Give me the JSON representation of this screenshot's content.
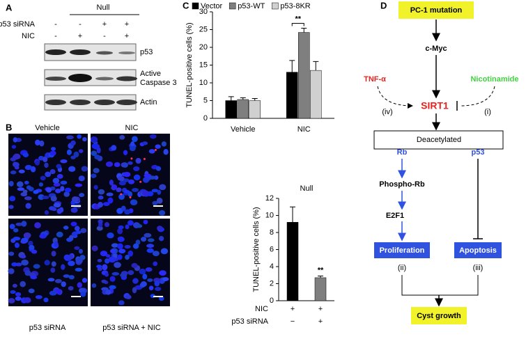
{
  "panel_labels": [
    "A",
    "B",
    "C",
    "D"
  ],
  "panel_a": {
    "group": "Null",
    "rows": [
      {
        "label": "p53 siRNA",
        "cells": [
          "-",
          "-",
          "+",
          "+"
        ]
      },
      {
        "label": "NIC",
        "cells": [
          "-",
          "+",
          "-",
          "+"
        ]
      }
    ],
    "blots": [
      [
        "p53"
      ],
      [
        "Active",
        "Caspase 3"
      ],
      [
        "Actin"
      ]
    ]
  },
  "panel_b": {
    "columns": [
      "Vehicle",
      "NIC"
    ],
    "bottom_labels": [
      "p53 siRNA",
      "p53 siRNA + NIC"
    ]
  },
  "chart_data": [
    {
      "type": "bar",
      "ylabel": "TUNEL-positive cells (%)",
      "categories": [
        "Vehicle",
        "NIC"
      ],
      "series": [
        {
          "name": "Vector",
          "color": "#000000",
          "values": [
            5,
            13
          ],
          "errors": [
            1.1,
            3.3
          ]
        },
        {
          "name": "p53-WT",
          "color": "#7f7f7f",
          "values": [
            5.3,
            24.2
          ],
          "errors": [
            0.5,
            1.2
          ]
        },
        {
          "name": "p53-8KR",
          "color": "#d0d0d0",
          "values": [
            5,
            13.5
          ],
          "errors": [
            0.6,
            2.5
          ]
        }
      ],
      "ylim": [
        0,
        30
      ],
      "yticks": [
        0,
        5,
        10,
        15,
        20,
        25,
        30
      ],
      "annotation": "**"
    },
    {
      "type": "bar",
      "title": "Null",
      "ylabel": "TUNEL-positive cells (%)",
      "categories": [
        null,
        null
      ],
      "values": [
        9.2,
        2.7
      ],
      "errors": [
        1.8,
        0.2
      ],
      "colors": [
        "#000000",
        "#7f7f7f"
      ],
      "ylim": [
        0,
        12
      ],
      "yticks": [
        0,
        2,
        4,
        6,
        8,
        10,
        12
      ],
      "annotation": "**",
      "x_table": [
        {
          "label": "NIC",
          "cells": [
            "+",
            "+"
          ]
        },
        {
          "label": "p53 siRNA",
          "cells": [
            "−",
            "+"
          ]
        }
      ]
    }
  ],
  "diagram": {
    "nodes": [
      "PC-1 mutation",
      "c-Myc",
      "TNF-α",
      "Nicotinamide",
      "SIRT1",
      "(iv)",
      "(i)",
      "Deacetylated",
      "Rb",
      "p53",
      "Phospho-Rb",
      "E2F1",
      "Proliferation",
      "Apoptosis",
      "(ii)",
      "(iii)",
      "Cyst growth"
    ]
  }
}
